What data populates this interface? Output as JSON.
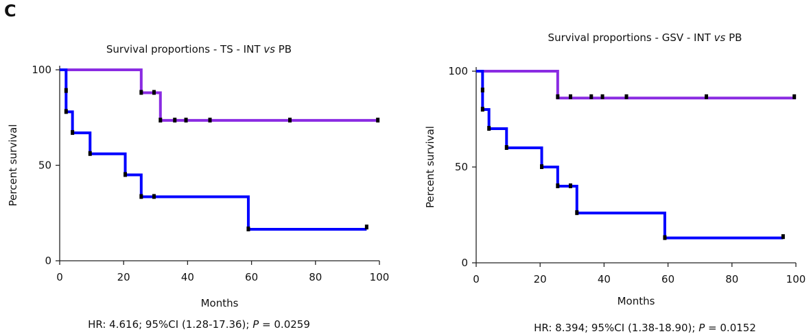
{
  "figure": {
    "panel_label": "C"
  },
  "chart_data": [
    {
      "type": "line",
      "title_parts": [
        "Survival proportions - TS - INT ",
        "vs",
        " PB"
      ],
      "xlabel": "Months",
      "ylabel": "Percent survival",
      "xlim": [
        0,
        100
      ],
      "ylim": [
        0,
        100
      ],
      "x_ticks": [
        "0",
        "20",
        "40",
        "60",
        "80",
        "100"
      ],
      "y_ticks": [
        "0",
        "50",
        "100"
      ],
      "grid": false,
      "footnote_parts": [
        "HR: 4.616; 95%CI (1.28-17.36); ",
        "P",
        " = 0.0259"
      ],
      "series": [
        {
          "color": "#8a2be2",
          "steps": [
            [
              0,
              100
            ],
            [
              25.5,
              88
            ],
            [
              31.5,
              73.5
            ],
            [
              100,
              73.5
            ]
          ],
          "censored": [
            [
              25.5,
              88
            ],
            [
              29.5,
              88
            ],
            [
              31.5,
              73.5
            ],
            [
              36,
              73.5
            ],
            [
              39.5,
              73.5
            ],
            [
              47,
              73.5
            ],
            [
              72,
              73.5
            ],
            [
              99.5,
              73.5
            ]
          ]
        },
        {
          "color": "#0000ff",
          "steps": [
            [
              0,
              100
            ],
            [
              2,
              78
            ],
            [
              4,
              67
            ],
            [
              9.5,
              56
            ],
            [
              20.5,
              45
            ],
            [
              25.5,
              33.5
            ],
            [
              59,
              16.5
            ],
            [
              96,
              16.5
            ]
          ],
          "censored": [
            [
              2,
              89
            ],
            [
              2,
              78
            ],
            [
              4,
              67
            ],
            [
              9.5,
              56
            ],
            [
              20.5,
              45
            ],
            [
              25.5,
              33.5
            ],
            [
              29.5,
              33.5
            ],
            [
              59,
              16.5
            ],
            [
              96,
              17.5
            ]
          ]
        }
      ]
    },
    {
      "type": "line",
      "title_parts": [
        "Survival proportions - GSV - INT ",
        "vs",
        " PB"
      ],
      "xlabel": "Months",
      "ylabel": "Percent survival",
      "xlim": [
        0,
        100
      ],
      "ylim": [
        0,
        100
      ],
      "x_ticks": [
        "0",
        "20",
        "40",
        "60",
        "80",
        "100"
      ],
      "y_ticks": [
        "0",
        "50",
        "100"
      ],
      "grid": false,
      "footnote_parts": [
        "HR: 8.394; 95%CI (1.38-18.90); ",
        "P",
        " = 0.0152"
      ],
      "series": [
        {
          "color": "#8a2be2",
          "steps": [
            [
              0,
              100
            ],
            [
              25.5,
              86
            ],
            [
              100,
              86
            ]
          ],
          "censored": [
            [
              25.5,
              86.5
            ],
            [
              29.5,
              86.5
            ],
            [
              36,
              86.5
            ],
            [
              39.5,
              86.5
            ],
            [
              47,
              86.5
            ],
            [
              72,
              86.5
            ],
            [
              99.5,
              86.5
            ]
          ]
        },
        {
          "color": "#0000ff",
          "steps": [
            [
              0,
              100
            ],
            [
              2,
              80
            ],
            [
              4,
              70
            ],
            [
              9.5,
              60
            ],
            [
              20.5,
              50
            ],
            [
              25.5,
              40
            ],
            [
              31.5,
              26
            ],
            [
              59,
              13
            ],
            [
              96,
              13
            ]
          ],
          "censored": [
            [
              2,
              90
            ],
            [
              2,
              80
            ],
            [
              4,
              70
            ],
            [
              9.5,
              60
            ],
            [
              20.5,
              50
            ],
            [
              25.5,
              40
            ],
            [
              29.5,
              40
            ],
            [
              31.5,
              26
            ],
            [
              59,
              13
            ],
            [
              96,
              13.5
            ]
          ]
        }
      ]
    }
  ]
}
